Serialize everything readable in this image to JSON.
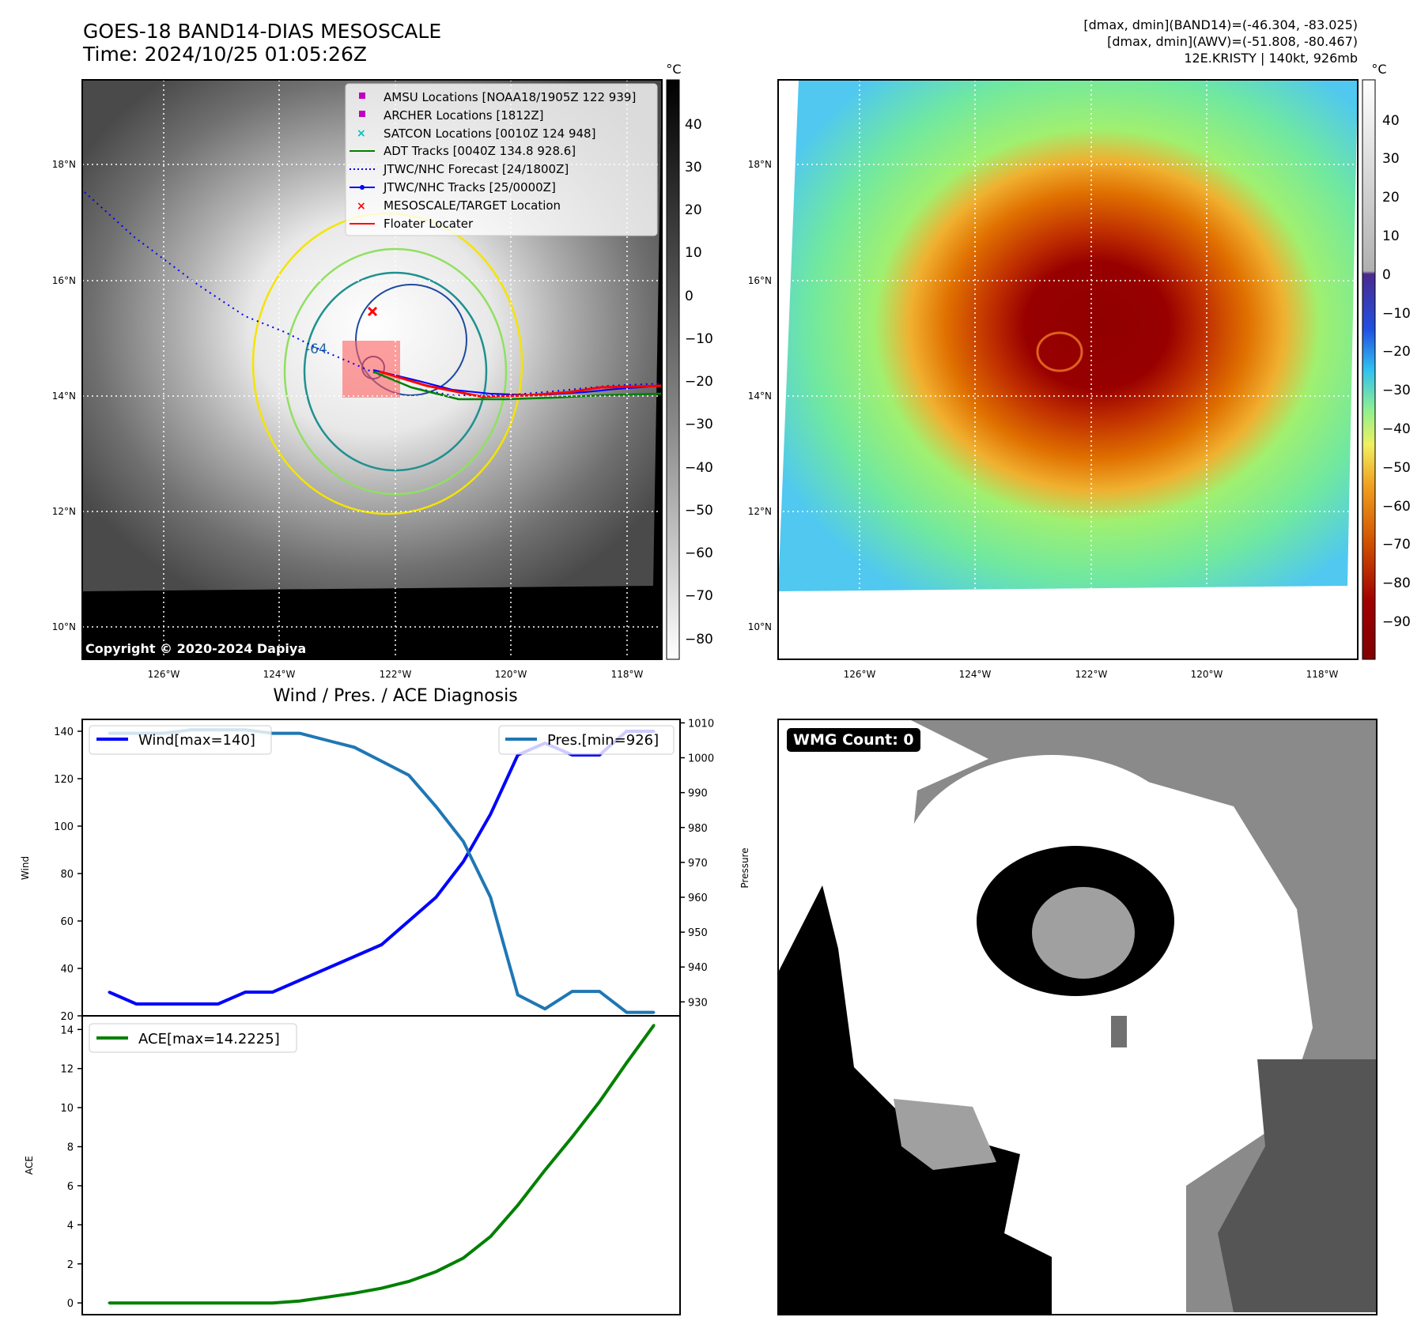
{
  "header": {
    "title_line1": "GOES-18 BAND14-DIAS MESOSCALE",
    "title_line2": "Time: 2024/10/25 01:05:26Z",
    "right_line1": "[dmax, dmin](BAND14)=(-46.304, -83.025)",
    "right_line2": "[dmax, dmin](AWV)=(-51.808, -80.467)",
    "right_line3": "12E.KRISTY | 140kt, 926mb"
  },
  "map": {
    "lat_labels": [
      "18°N",
      "16°N",
      "14°N",
      "12°N",
      "10°N"
    ],
    "lon_labels": [
      "126°W",
      "124°W",
      "122°W",
      "120°W",
      "118°W"
    ],
    "copyright": "Copyright © 2020-2024 Dapiya",
    "contour_label": "-64",
    "legend": [
      {
        "label": "AMSU Locations [NOAA18/1905Z 122 939]",
        "color": "#c000c0",
        "marker": "square"
      },
      {
        "label": "ARCHER Locations [1812Z]",
        "color": "#c000c0",
        "marker": "square"
      },
      {
        "label": "SATCON Locations [0010Z 124 948]",
        "color": "#00c0c0",
        "marker": "x"
      },
      {
        "label": "ADT Tracks [0040Z 134.8 928.6]",
        "color": "#008000",
        "marker": "line"
      },
      {
        "label": "JTWC/NHC Forecast [24/1800Z]",
        "color": "#0000ff",
        "marker": "dotted"
      },
      {
        "label": "JTWC/NHC Tracks [25/0000Z]",
        "color": "#0000ff",
        "marker": "line-dot"
      },
      {
        "label": "MESOSCALE/TARGET Location",
        "color": "#ff0000",
        "marker": "x"
      },
      {
        "label": "Floater Locater",
        "color": "#ff0000",
        "marker": "line"
      }
    ]
  },
  "colorbar_left": {
    "unit": "°C",
    "ticks": [
      "40",
      "30",
      "20",
      "10",
      "0",
      "−10",
      "−20",
      "−30",
      "−40",
      "−50",
      "−60",
      "−70",
      "−80"
    ]
  },
  "colorbar_right": {
    "unit": "°C",
    "ticks": [
      "40",
      "30",
      "20",
      "10",
      "0",
      "−10",
      "−20",
      "−30",
      "−40",
      "−50",
      "−60",
      "−70",
      "−80",
      "−90"
    ]
  },
  "wmg": {
    "label": "WMG Count: 0"
  },
  "colors": {
    "wind": "#0000ff",
    "pressure": "#1f77b4",
    "ace": "#008000",
    "track_red": "#ff0000"
  },
  "chart_data": [
    {
      "type": "line",
      "title": "Wind / Pres. / ACE Diagnosis",
      "ylabel": "Wind",
      "ylabel_right": "Pressure",
      "ylim": [
        20,
        145
      ],
      "ylim_right": [
        926,
        1011
      ],
      "yticks": [
        20,
        40,
        60,
        80,
        100,
        120,
        140
      ],
      "yticks_right": [
        930,
        940,
        950,
        960,
        970,
        980,
        990,
        1000,
        1010
      ],
      "series": [
        {
          "name": "Wind[max=140]",
          "axis": "left",
          "values": [
            30,
            25,
            25,
            25,
            25,
            30,
            30,
            35,
            40,
            45,
            50,
            60,
            70,
            85,
            105,
            130,
            135,
            130,
            130,
            140,
            140
          ]
        },
        {
          "name": "Pres.[min=926]",
          "axis": "right",
          "values": [
            1007,
            1007,
            1007,
            1008,
            1008,
            1008,
            1007,
            1007,
            1005,
            1003,
            999,
            995,
            986,
            976,
            960,
            932,
            928,
            933,
            933,
            927,
            927
          ]
        }
      ]
    },
    {
      "type": "line",
      "ylabel": "ACE",
      "ylim": [
        -0.6,
        14.7
      ],
      "yticks": [
        0,
        2,
        4,
        6,
        8,
        10,
        12,
        14
      ],
      "series": [
        {
          "name": "ACE[max=14.2225]",
          "values": [
            0,
            0,
            0,
            0,
            0,
            0,
            0,
            0.1,
            0.3,
            0.5,
            0.75,
            1.1,
            1.6,
            2.3,
            3.4,
            5.0,
            6.8,
            8.5,
            10.3,
            12.3,
            14.2225
          ]
        }
      ]
    }
  ]
}
